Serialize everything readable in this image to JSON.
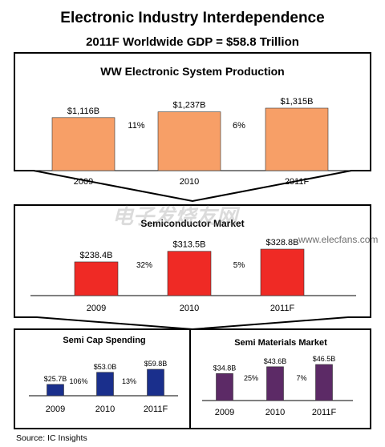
{
  "title": "Electronic Industry Interdependence",
  "subtitle": "2011F Worldwide GDP = $58.8 Trillion",
  "source": "Source:  IC Insights",
  "watermark": "www.elecfans.com",
  "colors": {
    "orange": "#f79f67",
    "red": "#ef2a25",
    "navy": "#1a2f8c",
    "purple": "#5c2a66"
  },
  "chart_data": [
    {
      "type": "bar",
      "title": "WW Electronic System Production",
      "categories": [
        "2009",
        "2010",
        "2011F"
      ],
      "values": [
        1116,
        1237,
        1315
      ],
      "value_labels": [
        "$1,116B",
        "$1,237B",
        "$1,315B"
      ],
      "growth_labels": [
        "11%",
        "6%"
      ],
      "color": "#f79f67"
    },
    {
      "type": "bar",
      "title": "Semiconductor Market",
      "categories": [
        "2009",
        "2010",
        "2011F"
      ],
      "values": [
        238.4,
        313.5,
        328.8
      ],
      "value_labels": [
        "$238.4B",
        "$313.5B",
        "$328.8B"
      ],
      "growth_labels": [
        "32%",
        "5%"
      ],
      "color": "#ef2a25"
    },
    {
      "type": "bar",
      "title": "Semi Cap Spending",
      "categories": [
        "2009",
        "2010",
        "2011F"
      ],
      "values": [
        25.7,
        53.0,
        59.8
      ],
      "value_labels": [
        "$25.7B",
        "$53.0B",
        "$59.8B"
      ],
      "growth_labels": [
        "106%",
        "13%"
      ],
      "color": "#1a2f8c"
    },
    {
      "type": "bar",
      "title": "Semi Materials Market",
      "categories": [
        "2009",
        "2010",
        "2011F"
      ],
      "values": [
        34.8,
        43.6,
        46.5
      ],
      "value_labels": [
        "$34.8B",
        "$43.6B",
        "$46.5B"
      ],
      "growth_labels": [
        "25%",
        "7%"
      ],
      "color": "#5c2a66"
    }
  ]
}
